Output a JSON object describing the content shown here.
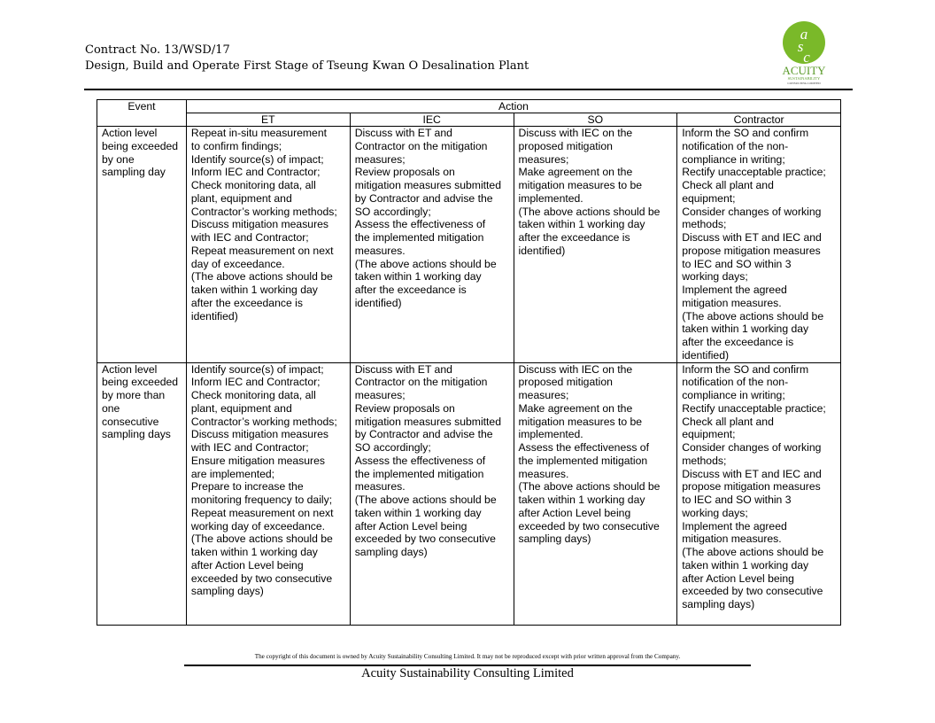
{
  "header": {
    "line1": "Contract No. 13/WSD/17",
    "line2": "Design, Build and Operate First Stage of Tseung Kwan O Desalination Plant"
  },
  "logo": {
    "letters": "asc",
    "name": "ACUITY",
    "sub1": "SUSTAINABILITY",
    "sub2": "CONSULTING LIMITED",
    "color": "#7ab929"
  },
  "table": {
    "event_header": "Event",
    "action_header": "Action",
    "columns": [
      "ET",
      "IEC",
      "SO",
      "Contractor"
    ],
    "rows": [
      {
        "event": [
          "Action level",
          "being exceeded",
          "by one",
          "sampling day"
        ],
        "cells": [
          [
            "Repeat in-situ measurement",
            "to confirm findings;",
            "Identify source(s) of impact;",
            "Inform IEC and Contractor;",
            "Check monitoring data, all",
            "plant, equipment and",
            "Contractor’s working methods;",
            "Discuss mitigation measures",
            "with IEC and Contractor;",
            "Repeat measurement on next",
            "day of exceedance.",
            "(The above actions should be",
            "taken within 1 working day",
            "after the exceedance is",
            "identified)"
          ],
          [
            "Discuss with ET and",
            "Contractor on the mitigation",
            "measures;",
            "Review proposals on",
            "mitigation measures submitted",
            "by Contractor and advise the",
            "SO accordingly;",
            "Assess the effectiveness of",
            "the implemented mitigation",
            "measures.",
            "(The above actions should be",
            "taken within 1 working day",
            "after the exceedance is",
            "identified)"
          ],
          [
            "Discuss with IEC on the",
            "proposed mitigation",
            "measures;",
            "Make agreement on the",
            "mitigation measures to be",
            "implemented.",
            "(The above actions should be",
            "taken within 1 working day",
            "after the exceedance is",
            "identified)"
          ],
          [
            "Inform the SO and confirm",
            "notification of the non-",
            "compliance in writing;",
            "Rectify unacceptable practice;",
            "Check all plant and",
            "equipment;",
            "Consider changes of working",
            "methods;",
            "Discuss with ET and IEC and",
            "propose mitigation measures",
            "to IEC and SO within 3",
            "working days;",
            "Implement the agreed",
            "mitigation measures.",
            "(The above actions should be",
            "taken within 1 working day",
            "after the exceedance is",
            "identified)"
          ]
        ]
      },
      {
        "event": [
          "Action level",
          "being exceeded",
          "by more than",
          "one",
          "consecutive",
          "sampling days"
        ],
        "cells": [
          [
            "Identify source(s) of impact;",
            "Inform IEC and Contractor;",
            "Check monitoring data, all",
            "plant, equipment and",
            "Contractor’s working methods;",
            "Discuss mitigation measures",
            "with IEC and Contractor;",
            "Ensure mitigation measures",
            "are implemented;",
            "Prepare to increase the",
            "monitoring frequency to daily;",
            "Repeat measurement on next",
            "working day of exceedance.",
            "(The above actions should be",
            "taken within 1 working day",
            "after Action Level being",
            "exceeded by two consecutive",
            "sampling days)"
          ],
          [
            "Discuss with ET and",
            "Contractor on the mitigation",
            "measures;",
            "Review proposals on",
            "mitigation measures submitted",
            "by Contractor and advise the",
            "SO accordingly;",
            "Assess the effectiveness of",
            "the implemented mitigation",
            "measures.",
            "(The above actions should be",
            "taken within 1 working day",
            "after Action Level being",
            "exceeded by two consecutive",
            "sampling days)"
          ],
          [
            "Discuss with IEC on the",
            "proposed mitigation",
            "measures;",
            "Make agreement on the",
            "mitigation measures to be",
            "implemented.",
            "Assess the effectiveness of",
            "the implemented mitigation",
            "measures.",
            "(The above actions should be",
            "taken within 1 working day",
            "after Action Level being",
            "exceeded by two consecutive",
            "sampling days)"
          ],
          [
            "Inform the SO and confirm",
            "notification of the non-",
            "compliance in writing;",
            "Rectify unacceptable practice;",
            "Check all plant and",
            "equipment;",
            "Consider changes of working",
            "methods;",
            "Discuss with ET and IEC and",
            "propose mitigation measures",
            "to IEC and SO within 3",
            "working days;",
            "Implement the agreed",
            "mitigation measures.",
            "(The above actions should be",
            "taken within 1 working day",
            "after Action Level being",
            "exceeded by two consecutive",
            "sampling days)"
          ]
        ]
      }
    ]
  },
  "footer": {
    "copyright": "The copyright of this document is owned by Acuity Sustainability Consulting Limited. It may not be reproduced except with prior written approval from the Company.",
    "company": "Acuity Sustainability Consulting Limited"
  }
}
